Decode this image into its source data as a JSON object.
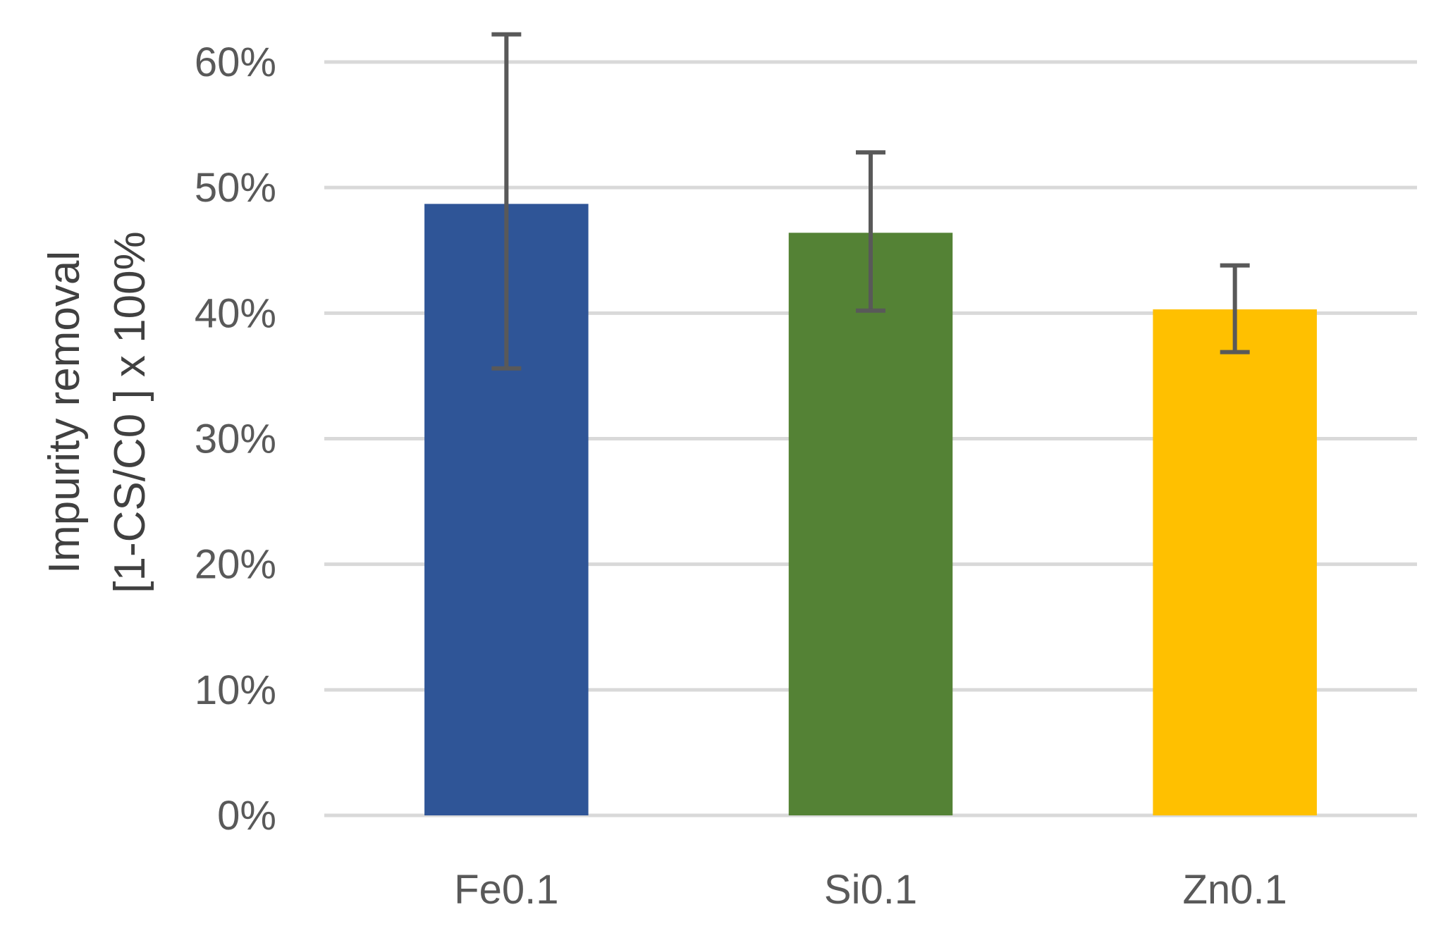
{
  "chart_data": {
    "type": "bar",
    "categories": [
      "Fe0.1",
      "Si0.1",
      "Zn0.1"
    ],
    "values": [
      0.487,
      0.464,
      0.403
    ],
    "error_upper": [
      0.622,
      0.528,
      0.438
    ],
    "error_lower": [
      0.356,
      0.402,
      0.369
    ],
    "colors": [
      "#2F5597",
      "#548235",
      "#FFC000"
    ],
    "ylabel_line1": "Impurity removal",
    "ylabel_line2": "[1-CS/C0 ] x 100%",
    "ylim": [
      0,
      0.6
    ],
    "yticks": [
      "0%",
      "10%",
      "20%",
      "30%",
      "40%",
      "50%",
      "60%"
    ],
    "grid": true
  }
}
